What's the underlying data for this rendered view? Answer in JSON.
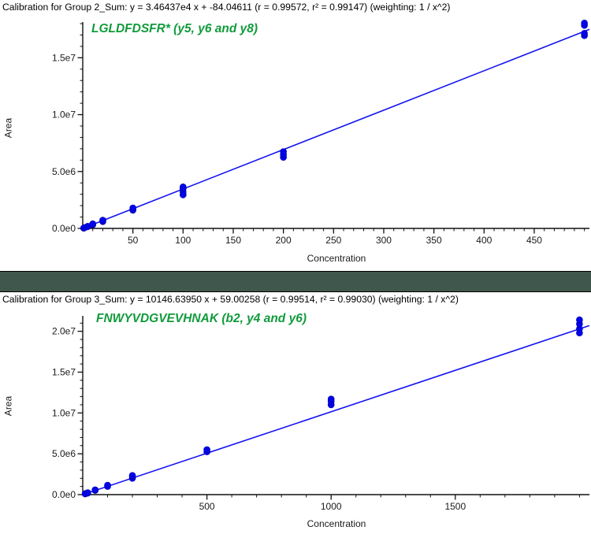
{
  "page": {
    "background_color": "#ffffff",
    "separator_color": "#3f574c",
    "point_color": "#0404e8",
    "line_color": "#1414f0",
    "axis_color": "#111111",
    "tick_label_color": "#1a1a1a"
  },
  "chart_data": [
    {
      "type": "scatter",
      "title": "Calibration for Group 2_Sum: y = 3.46437e4 x + -84.04611 (r = 0.99572, r² = 0.99147)  (weighting: 1 / x^2)",
      "annotation": "LGLDFDSFR* (y5, y6 and y8)",
      "annotation_color": "#119b3c",
      "xlabel": "Concentration",
      "ylabel": "Area",
      "xlim": [
        0,
        505
      ],
      "ylim": [
        0,
        18000000
      ],
      "x_major_ticks": [
        {
          "v": 50,
          "label": "50"
        },
        {
          "v": 100,
          "label": "100"
        },
        {
          "v": 150,
          "label": "150"
        },
        {
          "v": 200,
          "label": "200"
        },
        {
          "v": 250,
          "label": "250"
        },
        {
          "v": 300,
          "label": "300"
        },
        {
          "v": 350,
          "label": "350"
        },
        {
          "v": 400,
          "label": "400"
        },
        {
          "v": 450,
          "label": "450"
        }
      ],
      "x_minor_step": 10,
      "y_major_ticks": [
        {
          "v": 0,
          "label": "0.0e0"
        },
        {
          "v": 5000000,
          "label": "5.0e6"
        },
        {
          "v": 10000000,
          "label": "1.0e7"
        },
        {
          "v": 15000000,
          "label": "1.5e7"
        }
      ],
      "y_minor_step": 1000000,
      "fit": {
        "slope": 34643.7,
        "intercept": -84.04611,
        "r": 0.99572,
        "r2": 0.99147,
        "weighting": "1 / x^2"
      },
      "points": [
        [
          1,
          25000
        ],
        [
          1,
          35000
        ],
        [
          2,
          60000
        ],
        [
          2,
          75000
        ],
        [
          5,
          160000
        ],
        [
          5,
          185000
        ],
        [
          10,
          320000
        ],
        [
          10,
          360000
        ],
        [
          10,
          400000
        ],
        [
          20,
          600000
        ],
        [
          20,
          660000
        ],
        [
          20,
          720000
        ],
        [
          50,
          1600000
        ],
        [
          50,
          1700000
        ],
        [
          50,
          1800000
        ],
        [
          100,
          2950000
        ],
        [
          100,
          3200000
        ],
        [
          100,
          3500000
        ],
        [
          100,
          3650000
        ],
        [
          200,
          6250000
        ],
        [
          200,
          6500000
        ],
        [
          200,
          6750000
        ],
        [
          500,
          16950000
        ],
        [
          500,
          17150000
        ],
        [
          500,
          17850000
        ],
        [
          500,
          18050000
        ]
      ]
    },
    {
      "type": "scatter",
      "title": "Calibration for Group 3_Sum: y = 10146.63950 x + 59.00258 (r = 0.99514, r² = 0.99030)  (weighting: 1 / x^2)",
      "annotation": "FNWYVDGVEVHNAK (b2, y4 and y6)",
      "annotation_color": "#119b3c",
      "xlabel": "Concentration",
      "ylabel": "Area",
      "xlim": [
        0,
        2040
      ],
      "ylim": [
        0,
        21700000
      ],
      "x_major_ticks": [
        {
          "v": 500,
          "label": "500"
        },
        {
          "v": 1000,
          "label": "1000"
        },
        {
          "v": 1500,
          "label": "1500"
        }
      ],
      "x_minor_step": 100,
      "y_major_ticks": [
        {
          "v": 0,
          "label": "0.0e0"
        },
        {
          "v": 5000000,
          "label": "5.0e6"
        },
        {
          "v": 10000000,
          "label": "1.0e7"
        },
        {
          "v": 15000000,
          "label": "1.5e7"
        },
        {
          "v": 20000000,
          "label": "2.0e7"
        }
      ],
      "y_minor_step": 1000000,
      "fit": {
        "slope": 10146.6395,
        "intercept": 59.00258,
        "r": 0.99514,
        "r2": 0.9903,
        "weighting": "1 / x^2"
      },
      "points": [
        [
          10,
          90000
        ],
        [
          10,
          130000
        ],
        [
          20,
          190000
        ],
        [
          20,
          240000
        ],
        [
          50,
          520000
        ],
        [
          50,
          590000
        ],
        [
          100,
          1000000
        ],
        [
          100,
          1150000
        ],
        [
          200,
          2000000
        ],
        [
          200,
          2200000
        ],
        [
          200,
          2350000
        ],
        [
          500,
          5250000
        ],
        [
          500,
          5500000
        ],
        [
          1000,
          11000000
        ],
        [
          1000,
          11400000
        ],
        [
          1000,
          11700000
        ],
        [
          2000,
          19800000
        ],
        [
          2000,
          20300000
        ],
        [
          2000,
          20900000
        ],
        [
          2000,
          21400000
        ]
      ]
    }
  ]
}
